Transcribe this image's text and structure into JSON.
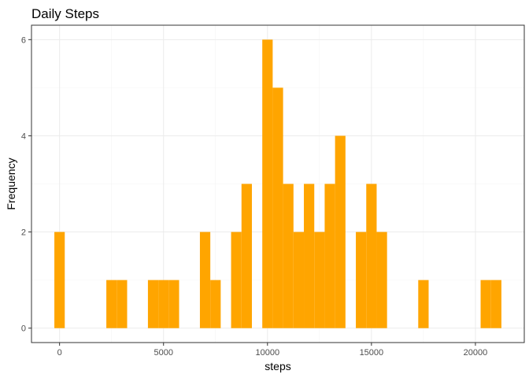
{
  "chart_data": {
    "type": "bar",
    "title": "Daily Steps",
    "xlabel": "steps",
    "ylabel": "Frequency",
    "bin_width": 500,
    "xlim": [
      -1350,
      22350
    ],
    "ylim": [
      -0.3,
      6.3
    ],
    "x_ticks": [
      0,
      5000,
      10000,
      15000,
      20000
    ],
    "y_ticks": [
      0,
      2,
      4,
      6
    ],
    "grid": true,
    "legend": "none",
    "bar_color": "#FFA500",
    "bins": [
      {
        "x": 0,
        "count": 2
      },
      {
        "x": 2500,
        "count": 1
      },
      {
        "x": 3000,
        "count": 1
      },
      {
        "x": 4500,
        "count": 1
      },
      {
        "x": 5000,
        "count": 1
      },
      {
        "x": 5500,
        "count": 1
      },
      {
        "x": 7000,
        "count": 2
      },
      {
        "x": 7500,
        "count": 1
      },
      {
        "x": 8500,
        "count": 2
      },
      {
        "x": 9000,
        "count": 3
      },
      {
        "x": 10000,
        "count": 6
      },
      {
        "x": 10500,
        "count": 5
      },
      {
        "x": 11000,
        "count": 3
      },
      {
        "x": 11500,
        "count": 2
      },
      {
        "x": 12000,
        "count": 3
      },
      {
        "x": 12500,
        "count": 2
      },
      {
        "x": 13000,
        "count": 3
      },
      {
        "x": 13500,
        "count": 4
      },
      {
        "x": 14500,
        "count": 2
      },
      {
        "x": 15000,
        "count": 3
      },
      {
        "x": 15500,
        "count": 2
      },
      {
        "x": 17500,
        "count": 1
      },
      {
        "x": 20500,
        "count": 1
      },
      {
        "x": 21000,
        "count": 1
      }
    ]
  }
}
